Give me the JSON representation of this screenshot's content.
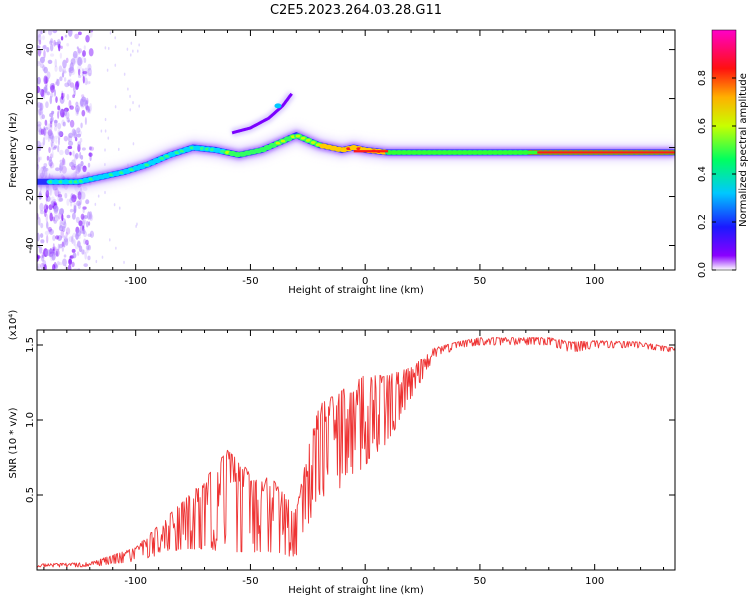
{
  "title": "C2E5.2023.264.03.28.G11",
  "chart_data": [
    {
      "type": "heatmap",
      "xlabel": "Height of straight line (km)",
      "ylabel": "Frequency (Hz)",
      "xlim": [
        -143,
        135
      ],
      "ylim": [
        -50,
        48
      ],
      "x_ticks": [
        -100,
        -50,
        0,
        50,
        100
      ],
      "y_ticks": [
        -40,
        -20,
        0,
        20,
        40
      ],
      "colorbar": {
        "label": "Normalized spectral amplitude",
        "range": [
          0,
          1
        ],
        "ticks": [
          "0.0",
          "0.2",
          "0.4",
          "0.6",
          "0.8"
        ]
      },
      "colormap": [
        "#ffffff",
        "#7a00ff",
        "#1a1aff",
        "#00c8ff",
        "#00ff60",
        "#c8ff00",
        "#ffb000",
        "#ff1010",
        "#ff00c8"
      ],
      "ridge": {
        "x": [
          -143,
          -135,
          -125,
          -115,
          -105,
          -95,
          -85,
          -75,
          -65,
          -55,
          -45,
          -35,
          -30,
          -25,
          -20,
          -15,
          -10,
          -5,
          0,
          10,
          25,
          50,
          75,
          100,
          135
        ],
        "y": [
          -14,
          -14,
          -14,
          -12,
          -10,
          -7,
          -3,
          0,
          -1,
          -3,
          -1,
          3,
          5,
          3,
          1,
          0,
          -1,
          0,
          -1,
          -2,
          -2,
          -2,
          -2,
          -2,
          -2
        ]
      },
      "branch": {
        "x": [
          -58,
          -50,
          -42,
          -36,
          -32
        ],
        "y": [
          6,
          8,
          12,
          17,
          22
        ]
      }
    },
    {
      "type": "line",
      "xlabel": "Height of straight line (km)",
      "ylabel": "SNR (10 * v/v)",
      "y_multiplier": "(x10⁴)",
      "xlim": [
        -143,
        135
      ],
      "ylim": [
        0,
        1.6
      ],
      "x_ticks": [
        -100,
        -50,
        0,
        50,
        100
      ],
      "y_ticks": [
        0.5,
        1.0,
        1.5
      ],
      "y_tick_labels": [
        "0.5",
        "1.0",
        "1.5"
      ],
      "color": "#ee3333",
      "envelope": {
        "x": [
          -143,
          -120,
          -110,
          -100,
          -90,
          -80,
          -70,
          -60,
          -50,
          -40,
          -30,
          -25,
          -20,
          -10,
          0,
          10,
          20,
          30,
          40,
          50,
          80,
          90,
          100,
          120,
          135
        ],
        "low": [
          0.02,
          0.02,
          0.04,
          0.06,
          0.1,
          0.14,
          0.14,
          0.12,
          0.12,
          0.12,
          0.08,
          0.3,
          0.45,
          0.55,
          0.7,
          0.85,
          1.15,
          1.4,
          1.48,
          1.5,
          1.5,
          1.45,
          1.48,
          1.48,
          1.45
        ],
        "high": [
          0.04,
          0.05,
          0.1,
          0.15,
          0.3,
          0.45,
          0.6,
          0.8,
          0.65,
          0.6,
          0.4,
          0.8,
          1.1,
          1.2,
          1.3,
          1.3,
          1.35,
          1.48,
          1.52,
          1.55,
          1.55,
          1.52,
          1.53,
          1.52,
          1.48
        ]
      }
    }
  ]
}
